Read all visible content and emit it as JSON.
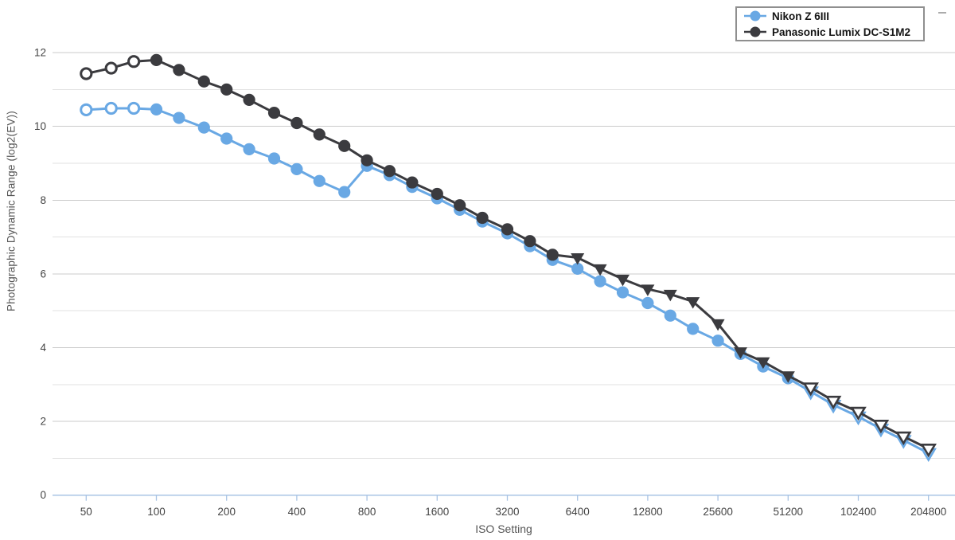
{
  "legend": {
    "items": [
      {
        "label": "Nikon Z 6III",
        "color": "#69a8e4"
      },
      {
        "label": "Panasonic Lumix DC-S1M2",
        "color": "#3b3b3f"
      }
    ]
  },
  "axes": {
    "x_label": "ISO Setting",
    "y_label": "Photographic Dynamic Range (log2(EV))",
    "x_tick_labels": [
      "50",
      "100",
      "200",
      "400",
      "800",
      "1600",
      "3200",
      "6400",
      "12800",
      "25600",
      "51200",
      "102400",
      "204800"
    ],
    "y_tick_labels": [
      "0",
      "2",
      "4",
      "6",
      "8",
      "10",
      "12"
    ]
  },
  "style": {
    "background": "#ffffff",
    "grid_major": "#cbcbcb",
    "grid_minor": "#e2e2e2",
    "axis_line": "#a9c4e4",
    "tick_text": "#444444",
    "axis_title_text": "#555555"
  },
  "chart_data": {
    "type": "line",
    "title": "",
    "xlabel": "ISO Setting",
    "ylabel": "Photographic Dynamic Range (log2(EV))",
    "x_scale": "log2",
    "ylim": [
      0,
      12
    ],
    "y_grid_step": 1,
    "y_label_step": 2,
    "grid": "horizontal",
    "legend_position": "top-right",
    "x_axis_ticks": [
      50,
      100,
      200,
      400,
      800,
      1600,
      3200,
      6400,
      12800,
      25600,
      51200,
      102400,
      204800
    ],
    "x": [
      50,
      64,
      80,
      100,
      125,
      160,
      200,
      250,
      320,
      400,
      500,
      640,
      800,
      1000,
      1250,
      1600,
      2000,
      2500,
      3200,
      4000,
      5000,
      6400,
      8000,
      10000,
      12800,
      16000,
      20000,
      25600,
      32000,
      40000,
      51200,
      64000,
      80000,
      102400,
      128000,
      160000,
      204800
    ],
    "series": [
      {
        "name": "Nikon Z 6III",
        "color": "#69a8e4",
        "values": [
          10.45,
          10.49,
          10.49,
          10.46,
          10.23,
          9.97,
          9.67,
          9.38,
          9.13,
          8.84,
          8.52,
          8.22,
          8.93,
          8.68,
          8.36,
          8.05,
          7.74,
          7.42,
          7.1,
          6.75,
          6.38,
          6.14,
          5.8,
          5.5,
          5.21,
          4.87,
          4.51,
          4.19,
          3.83,
          3.49,
          3.17,
          2.81,
          2.45,
          2.13,
          1.8,
          1.49,
          1.14
        ],
        "markers": [
          "open-circle",
          "open-circle",
          "open-circle",
          "circle",
          "circle",
          "circle",
          "circle",
          "circle",
          "circle",
          "circle",
          "circle",
          "circle",
          "circle",
          "circle",
          "circle",
          "circle",
          "circle",
          "circle",
          "circle",
          "circle",
          "circle",
          "circle",
          "circle",
          "circle",
          "circle",
          "circle",
          "circle",
          "circle",
          "circle",
          "circle",
          "circle",
          "open-triangle",
          "open-triangle",
          "open-triangle",
          "open-triangle",
          "open-triangle",
          "open-triangle"
        ]
      },
      {
        "name": "Panasonic Lumix DC-S1M2",
        "color": "#3b3b3f",
        "values": [
          11.43,
          11.58,
          11.76,
          11.8,
          11.53,
          11.22,
          11.0,
          10.72,
          10.37,
          10.09,
          9.78,
          9.47,
          9.08,
          8.79,
          8.48,
          8.17,
          7.86,
          7.52,
          7.21,
          6.89,
          6.52,
          6.44,
          6.14,
          5.86,
          5.59,
          5.45,
          5.25,
          4.65,
          3.89,
          3.62,
          3.24,
          2.92,
          2.56,
          2.26,
          1.91,
          1.59,
          1.26
        ],
        "markers": [
          "open-circle",
          "open-circle",
          "open-circle",
          "circle",
          "circle",
          "circle",
          "circle",
          "circle",
          "circle",
          "circle",
          "circle",
          "circle",
          "circle",
          "circle",
          "circle",
          "circle",
          "circle",
          "circle",
          "circle",
          "circle",
          "circle",
          "triangle",
          "triangle",
          "triangle",
          "triangle",
          "triangle",
          "triangle",
          "triangle",
          "triangle",
          "triangle",
          "triangle",
          "open-triangle",
          "open-triangle",
          "open-triangle",
          "open-triangle",
          "open-triangle",
          "open-triangle"
        ]
      }
    ]
  }
}
